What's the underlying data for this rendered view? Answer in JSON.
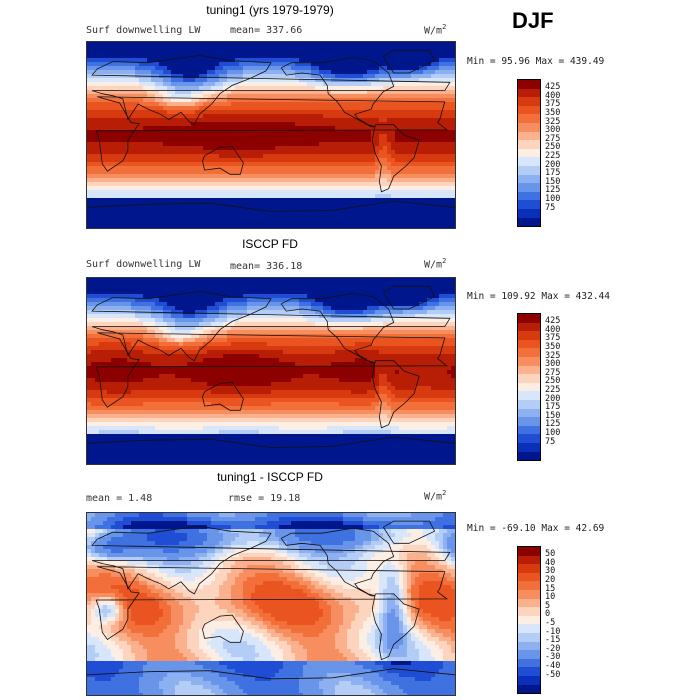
{
  "season": "DJF",
  "panels": [
    {
      "title": "tuning1 (yrs 1979-1979)",
      "left_label": "Surf downwelling LW",
      "stat_label": "mean= 337.66",
      "units": "W/m",
      "units_sup": "2",
      "minmax": "Min =  95.96 Max = 439.49",
      "colorbar": {
        "ticks": [
          "425",
          "400",
          "375",
          "350",
          "325",
          "300",
          "275",
          "250",
          "225",
          "200",
          "175",
          "150",
          "125",
          "100",
          "75"
        ],
        "colors": [
          "#8c0000",
          "#b81d05",
          "#d83a10",
          "#ea5420",
          "#f26f3a",
          "#f78e60",
          "#fbb08e",
          "#fdd5bf",
          "#fdeee4",
          "#d8e6fb",
          "#b3cdf6",
          "#8db1f0",
          "#6894ea",
          "#3f71e0",
          "#1f4ed4",
          "#0a2fb8",
          "#00168c"
        ]
      },
      "field": "lw"
    },
    {
      "title": "ISCCP FD",
      "left_label": "Surf downwelling LW",
      "stat_label": "mean= 336.18",
      "units": "W/m",
      "units_sup": "2",
      "minmax": "Min = 109.92 Max = 432.44",
      "colorbar": {
        "ticks": [
          "425",
          "400",
          "375",
          "350",
          "325",
          "300",
          "275",
          "250",
          "225",
          "200",
          "175",
          "150",
          "125",
          "100",
          "75"
        ],
        "colors": [
          "#8c0000",
          "#b81d05",
          "#d83a10",
          "#ea5420",
          "#f26f3a",
          "#f78e60",
          "#fbb08e",
          "#fdd5bf",
          "#fdeee4",
          "#d8e6fb",
          "#b3cdf6",
          "#8db1f0",
          "#6894ea",
          "#3f71e0",
          "#1f4ed4",
          "#0a2fb8",
          "#00168c"
        ]
      },
      "field": "lw2"
    },
    {
      "title": "tuning1 - ISCCP FD",
      "left_label": "mean =    1.48",
      "stat_label": "rmse =  19.18",
      "units": "W/m",
      "units_sup": "2",
      "minmax": "Min = -69.10 Max =  42.69",
      "colorbar": {
        "ticks": [
          "50",
          "40",
          "30",
          "20",
          "15",
          "10",
          "5",
          "0",
          "-5",
          "-10",
          "-15",
          "-20",
          "-30",
          "-40",
          "-50"
        ],
        "colors": [
          "#8c0000",
          "#b81d05",
          "#d83a10",
          "#ea5420",
          "#f26f3a",
          "#f78e60",
          "#fbb08e",
          "#fdd5bf",
          "#fdeee4",
          "#d8e6fb",
          "#b3cdf6",
          "#8db1f0",
          "#6894ea",
          "#3f71e0",
          "#1f4ed4",
          "#0a2fb8",
          "#00168c"
        ]
      },
      "field": "diff"
    }
  ]
}
